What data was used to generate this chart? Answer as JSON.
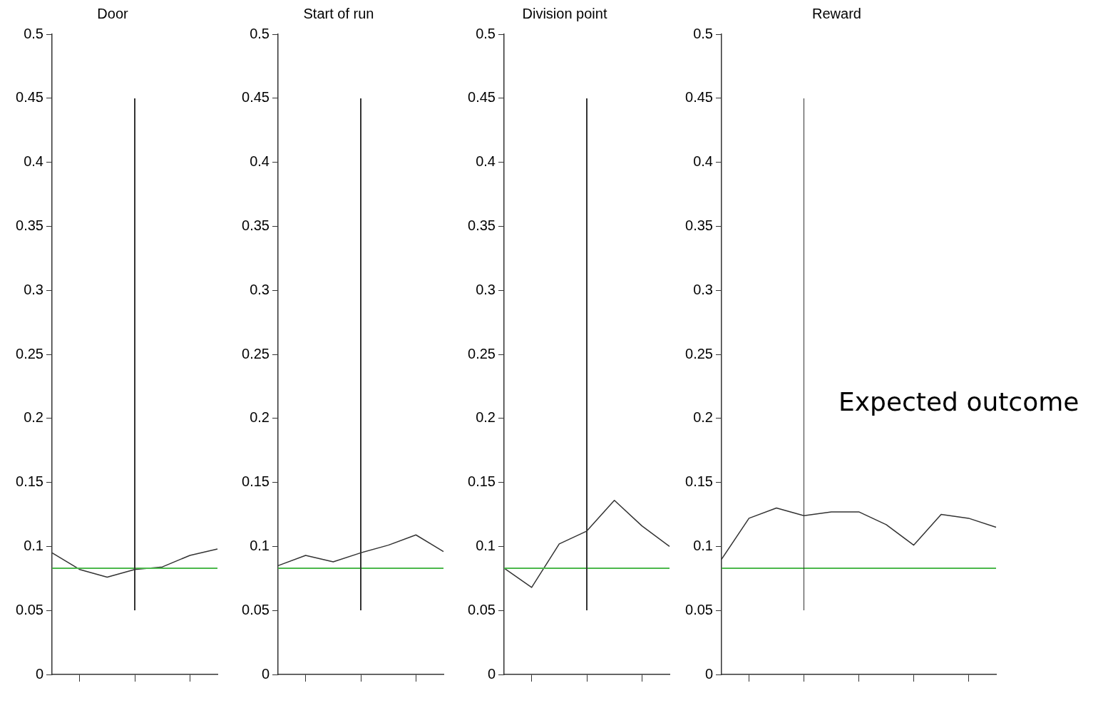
{
  "chart_data": [
    {
      "type": "line",
      "title": "Door",
      "categories": [
        null,
        null,
        null,
        null,
        null,
        null,
        null
      ],
      "ylim": [
        0,
        0.5
      ],
      "yticks": [
        0,
        0.05,
        0.1,
        0.15,
        0.2,
        0.25,
        0.3,
        0.35,
        0.4,
        0.45,
        0.5
      ],
      "marker": "none",
      "color": "#333333",
      "values": [
        0.095,
        0.082,
        0.076,
        0.082,
        0.084,
        0.093,
        0.098
      ],
      "ref_lines": [
        {
          "axis": "y",
          "value": 0.083,
          "color": "#4cb84c"
        }
      ]
    },
    {
      "type": "line",
      "title": "Start of run",
      "categories": [
        null,
        null,
        null,
        null,
        null,
        null,
        null
      ],
      "ylim": [
        0,
        0.5
      ],
      "yticks": [
        0,
        0.05,
        0.1,
        0.15,
        0.2,
        0.25,
        0.3,
        0.35,
        0.4,
        0.45,
        0.5
      ],
      "marker": "none",
      "color": "#333333",
      "values": [
        0.085,
        0.093,
        0.088,
        0.095,
        0.101,
        0.109,
        0.096
      ],
      "ref_lines": [
        {
          "axis": "y",
          "value": 0.083,
          "color": "#4cb84c"
        }
      ]
    },
    {
      "type": "line",
      "title": "Division point",
      "categories": [
        null,
        null,
        null,
        null,
        null,
        null,
        null
      ],
      "ylim": [
        0,
        0.5
      ],
      "yticks": [
        0,
        0.05,
        0.1,
        0.15,
        0.2,
        0.25,
        0.3,
        0.35,
        0.4,
        0.45,
        0.5
      ],
      "marker": "none",
      "color": "#333333",
      "values": [
        0.083,
        0.068,
        0.102,
        0.112,
        0.136,
        0.116,
        0.1
      ],
      "ref_lines": [
        {
          "axis": "y",
          "value": 0.083,
          "color": "#4cb84c"
        }
      ]
    },
    {
      "type": "line",
      "title": "Reward",
      "categories": [
        null,
        null,
        null,
        null,
        null,
        null,
        null,
        null,
        null,
        null,
        null
      ],
      "ylim": [
        0,
        0.5
      ],
      "yticks": [
        0,
        0.05,
        0.1,
        0.15,
        0.2,
        0.25,
        0.3,
        0.35,
        0.4,
        0.45,
        0.5
      ],
      "marker": "none",
      "color": "#333333",
      "values": [
        0.09,
        0.122,
        0.13,
        0.124,
        0.127,
        0.127,
        0.117,
        0.101,
        0.125,
        0.122,
        0.115
      ],
      "annotations": [
        "Expected outcome"
      ],
      "ref_lines": [
        {
          "axis": "y",
          "value": 0.083,
          "color": "#4cb84c"
        }
      ]
    }
  ]
}
